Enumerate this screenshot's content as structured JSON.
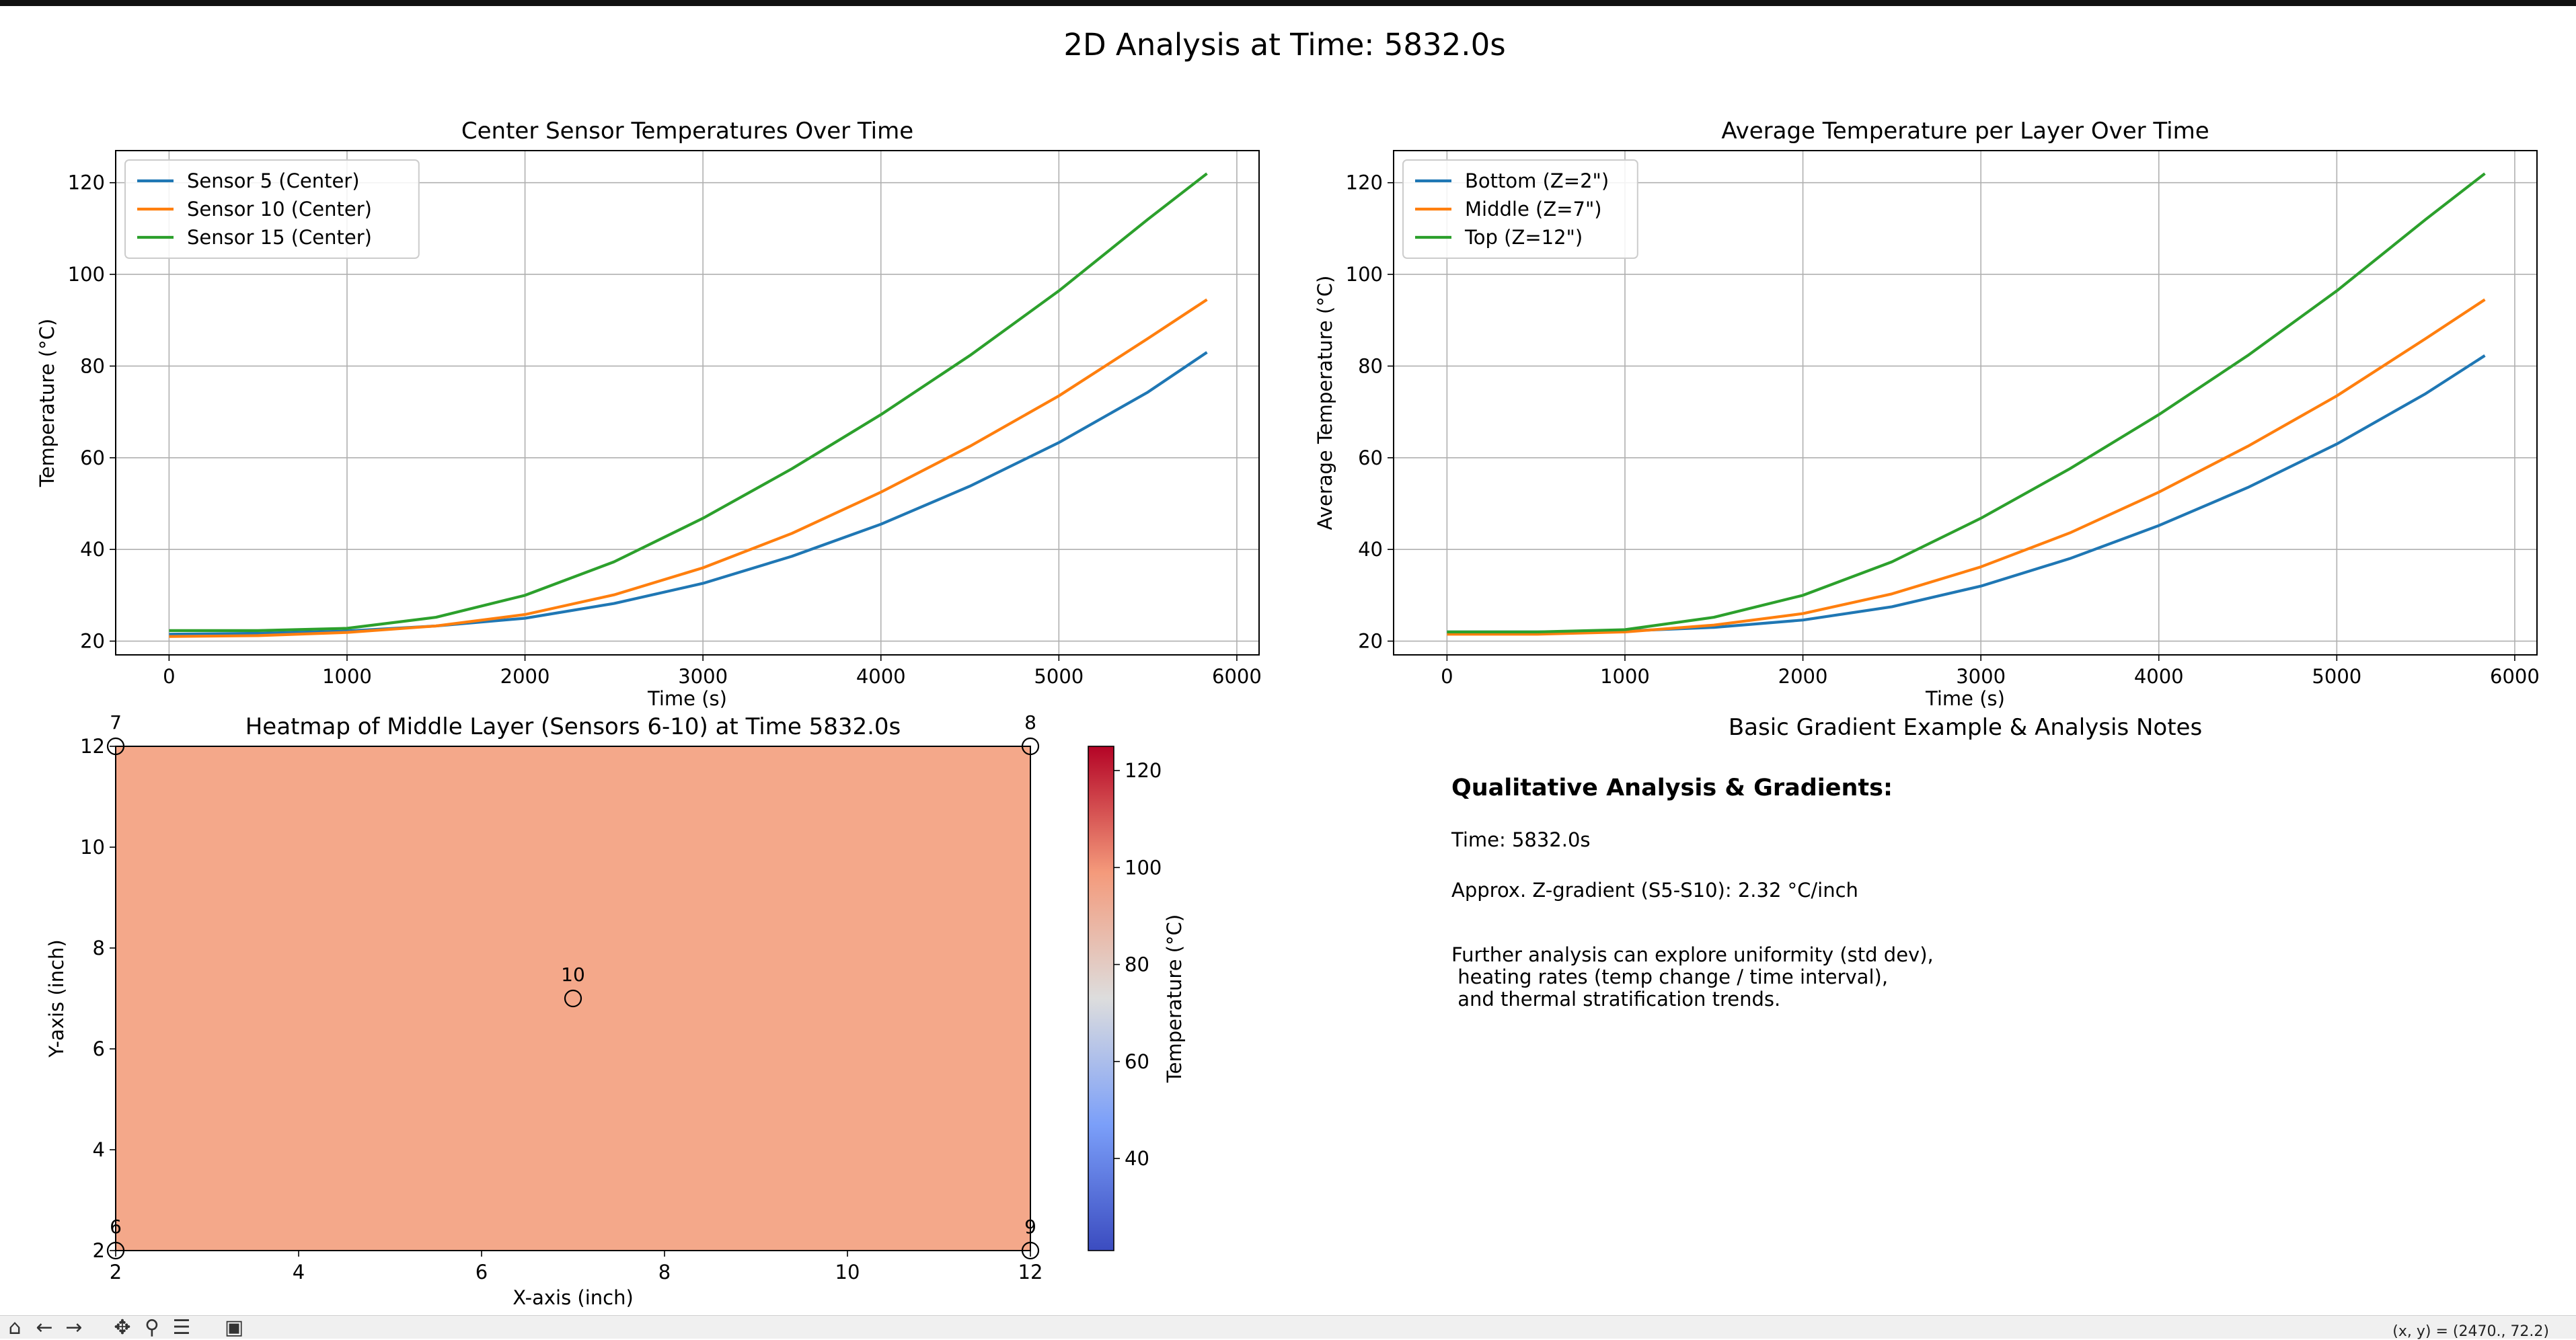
{
  "suptitle": "2D Analysis at Time: 5832.0s",
  "chart_data": [
    {
      "type": "line",
      "title": "Center Sensor Temperatures Over Time",
      "xlabel": "Time (s)",
      "ylabel": "Temperature (°C)",
      "xlim": [
        -300,
        6125
      ],
      "ylim": [
        17,
        127
      ],
      "xticks": [
        "0",
        "1000",
        "2000",
        "3000",
        "4000",
        "5000",
        "6000"
      ],
      "yticks": [
        "20",
        "40",
        "60",
        "80",
        "100",
        "120"
      ],
      "grid": true,
      "legend_position": "upper-left",
      "x": [
        0,
        500,
        1000,
        1500,
        2000,
        2500,
        3000,
        3500,
        4000,
        4500,
        5000,
        5500,
        5832
      ],
      "series": [
        {
          "name": "Sensor 5 (Center)",
          "color": "#1f77b4",
          "values": [
            21.5,
            21.7,
            22.2,
            23.3,
            25.0,
            28.2,
            32.6,
            38.5,
            45.5,
            53.8,
            63.3,
            74.3,
            83.0
          ]
        },
        {
          "name": "Sensor 10 (Center)",
          "color": "#ff7f0e",
          "values": [
            21.0,
            21.2,
            21.9,
            23.3,
            25.8,
            30.1,
            36.0,
            43.5,
            52.5,
            62.5,
            73.5,
            86.0,
            94.5
          ]
        },
        {
          "name": "Sensor 15 (Center)",
          "color": "#2ca02c",
          "values": [
            22.3,
            22.3,
            22.8,
            25.2,
            30.0,
            37.3,
            46.8,
            57.6,
            69.4,
            82.3,
            96.4,
            112.0,
            122.0
          ]
        }
      ]
    },
    {
      "type": "line",
      "title": "Average Temperature per Layer Over Time",
      "xlabel": "Time (s)",
      "ylabel": "Average Temperature (°C)",
      "xlim": [
        -300,
        6125
      ],
      "ylim": [
        17,
        127
      ],
      "xticks": [
        "0",
        "1000",
        "2000",
        "3000",
        "4000",
        "5000",
        "6000"
      ],
      "yticks": [
        "20",
        "40",
        "60",
        "80",
        "100",
        "120"
      ],
      "grid": true,
      "legend_position": "upper-left",
      "x": [
        0,
        500,
        1000,
        1500,
        2000,
        2500,
        3000,
        3500,
        4000,
        4500,
        5000,
        5500,
        5832
      ],
      "series": [
        {
          "name": "Bottom (Z=2\")",
          "color": "#1f77b4",
          "values": [
            22.0,
            22.0,
            22.2,
            23.0,
            24.6,
            27.5,
            32.0,
            38.0,
            45.2,
            53.5,
            63.0,
            74.0,
            82.3
          ]
        },
        {
          "name": "Middle (Z=7\")",
          "color": "#ff7f0e",
          "values": [
            21.5,
            21.5,
            22.0,
            23.5,
            26.0,
            30.3,
            36.2,
            43.6,
            52.5,
            62.5,
            73.5,
            86.0,
            94.5
          ]
        },
        {
          "name": "Top (Z=12\")",
          "color": "#2ca02c",
          "values": [
            22.0,
            22.0,
            22.5,
            25.2,
            30.0,
            37.3,
            46.8,
            57.6,
            69.4,
            82.3,
            96.4,
            112.0,
            122.0
          ]
        }
      ]
    },
    {
      "type": "heatmap",
      "title": "Heatmap of Middle Layer (Sensors 6-10) at Time 5832.0s",
      "xlabel": "X-axis (inch)",
      "ylabel": "Y-axis (inch)",
      "xlim": [
        2,
        12
      ],
      "ylim": [
        2,
        12
      ],
      "xticks": [
        "2",
        "4",
        "6",
        "8",
        "10",
        "12"
      ],
      "yticks": [
        "2",
        "4",
        "6",
        "8",
        "10",
        "12"
      ],
      "colormap": "coolwarm",
      "colorbar_label": "Temperature (°C)",
      "colorbar_range": [
        21,
        125
      ],
      "colorbar_ticks": [
        "40",
        "60",
        "80",
        "100",
        "120"
      ],
      "field_value": 94.5,
      "field_color": "#f4a88a",
      "sensors": [
        {
          "label": "6",
          "x": 2,
          "y": 2
        },
        {
          "label": "7",
          "x": 2,
          "y": 12
        },
        {
          "label": "8",
          "x": 12,
          "y": 12
        },
        {
          "label": "9",
          "x": 12,
          "y": 2
        },
        {
          "label": "10",
          "x": 7,
          "y": 7
        }
      ]
    }
  ],
  "notes": {
    "panel_title": "Basic Gradient Example & Analysis Notes",
    "heading": "Qualitative Analysis & Gradients:",
    "time_line": "Time: 5832.0s",
    "gradient_line": "Approx. Z-gradient (S5-S10): 2.32 °C/inch",
    "further_1": "Further analysis can explore uniformity (std dev),",
    "further_2": " heating rates (temp change / time interval),",
    "further_3": " and thermal stratification trends."
  },
  "statusbar": {
    "coords": "(x, y) = (2470., 72.2)"
  }
}
